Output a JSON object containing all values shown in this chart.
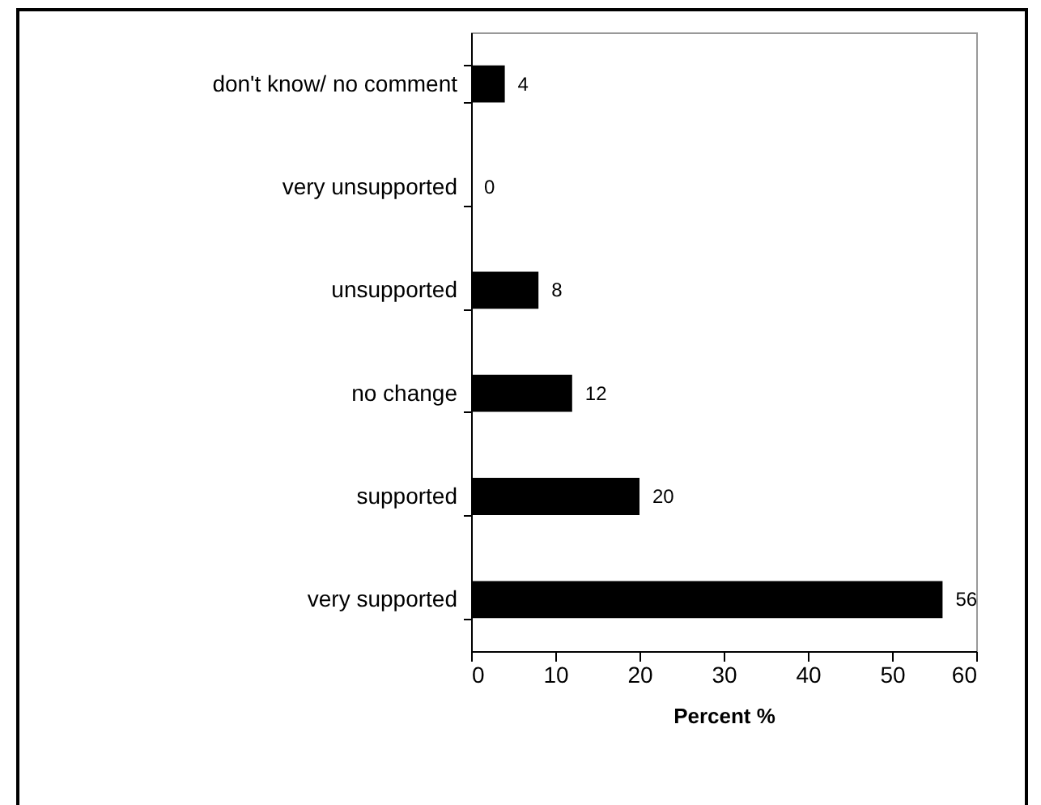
{
  "chart_data": {
    "type": "bar",
    "orientation": "horizontal",
    "xlabel": "Percent %",
    "categories": [
      "don't know/ no comment",
      "very unsupported",
      "unsupported",
      "no change",
      "supported",
      "very supported"
    ],
    "values": [
      4,
      0,
      8,
      12,
      20,
      56
    ],
    "color": "#000000",
    "xlim": [
      0,
      60
    ],
    "xticks": [
      0,
      10,
      20,
      30,
      40,
      50,
      60
    ],
    "grid": false,
    "data_labels": true
  }
}
